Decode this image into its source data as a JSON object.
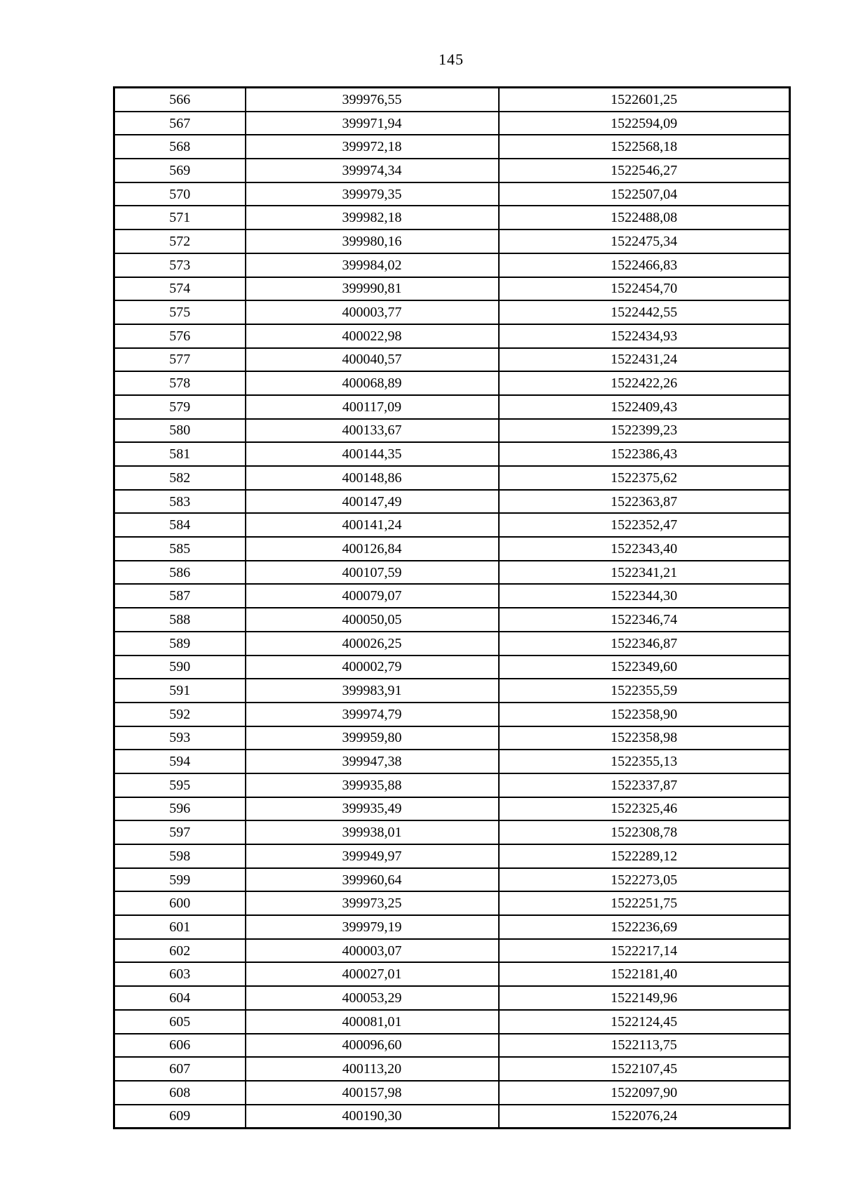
{
  "page_number": "145",
  "table": {
    "rows": [
      {
        "no": "566",
        "x": "399976,55",
        "y": "1522601,25"
      },
      {
        "no": "567",
        "x": "399971,94",
        "y": "1522594,09"
      },
      {
        "no": "568",
        "x": "399972,18",
        "y": "1522568,18"
      },
      {
        "no": "569",
        "x": "399974,34",
        "y": "1522546,27"
      },
      {
        "no": "570",
        "x": "399979,35",
        "y": "1522507,04"
      },
      {
        "no": "571",
        "x": "399982,18",
        "y": "1522488,08"
      },
      {
        "no": "572",
        "x": "399980,16",
        "y": "1522475,34"
      },
      {
        "no": "573",
        "x": "399984,02",
        "y": "1522466,83"
      },
      {
        "no": "574",
        "x": "399990,81",
        "y": "1522454,70"
      },
      {
        "no": "575",
        "x": "400003,77",
        "y": "1522442,55"
      },
      {
        "no": "576",
        "x": "400022,98",
        "y": "1522434,93"
      },
      {
        "no": "577",
        "x": "400040,57",
        "y": "1522431,24"
      },
      {
        "no": "578",
        "x": "400068,89",
        "y": "1522422,26"
      },
      {
        "no": "579",
        "x": "400117,09",
        "y": "1522409,43"
      },
      {
        "no": "580",
        "x": "400133,67",
        "y": "1522399,23"
      },
      {
        "no": "581",
        "x": "400144,35",
        "y": "1522386,43"
      },
      {
        "no": "582",
        "x": "400148,86",
        "y": "1522375,62"
      },
      {
        "no": "583",
        "x": "400147,49",
        "y": "1522363,87"
      },
      {
        "no": "584",
        "x": "400141,24",
        "y": "1522352,47"
      },
      {
        "no": "585",
        "x": "400126,84",
        "y": "1522343,40"
      },
      {
        "no": "586",
        "x": "400107,59",
        "y": "1522341,21"
      },
      {
        "no": "587",
        "x": "400079,07",
        "y": "1522344,30"
      },
      {
        "no": "588",
        "x": "400050,05",
        "y": "1522346,74"
      },
      {
        "no": "589",
        "x": "400026,25",
        "y": "1522346,87"
      },
      {
        "no": "590",
        "x": "400002,79",
        "y": "1522349,60"
      },
      {
        "no": "591",
        "x": "399983,91",
        "y": "1522355,59"
      },
      {
        "no": "592",
        "x": "399974,79",
        "y": "1522358,90"
      },
      {
        "no": "593",
        "x": "399959,80",
        "y": "1522358,98"
      },
      {
        "no": "594",
        "x": "399947,38",
        "y": "1522355,13"
      },
      {
        "no": "595",
        "x": "399935,88",
        "y": "1522337,87"
      },
      {
        "no": "596",
        "x": "399935,49",
        "y": "1522325,46"
      },
      {
        "no": "597",
        "x": "399938,01",
        "y": "1522308,78"
      },
      {
        "no": "598",
        "x": "399949,97",
        "y": "1522289,12"
      },
      {
        "no": "599",
        "x": "399960,64",
        "y": "1522273,05"
      },
      {
        "no": "600",
        "x": "399973,25",
        "y": "1522251,75"
      },
      {
        "no": "601",
        "x": "399979,19",
        "y": "1522236,69"
      },
      {
        "no": "602",
        "x": "400003,07",
        "y": "1522217,14"
      },
      {
        "no": "603",
        "x": "400027,01",
        "y": "1522181,40"
      },
      {
        "no": "604",
        "x": "400053,29",
        "y": "1522149,96"
      },
      {
        "no": "605",
        "x": "400081,01",
        "y": "1522124,45"
      },
      {
        "no": "606",
        "x": "400096,60",
        "y": "1522113,75"
      },
      {
        "no": "607",
        "x": "400113,20",
        "y": "1522107,45"
      },
      {
        "no": "608",
        "x": "400157,98",
        "y": "1522097,90"
      },
      {
        "no": "609",
        "x": "400190,30",
        "y": "1522076,24"
      }
    ]
  }
}
